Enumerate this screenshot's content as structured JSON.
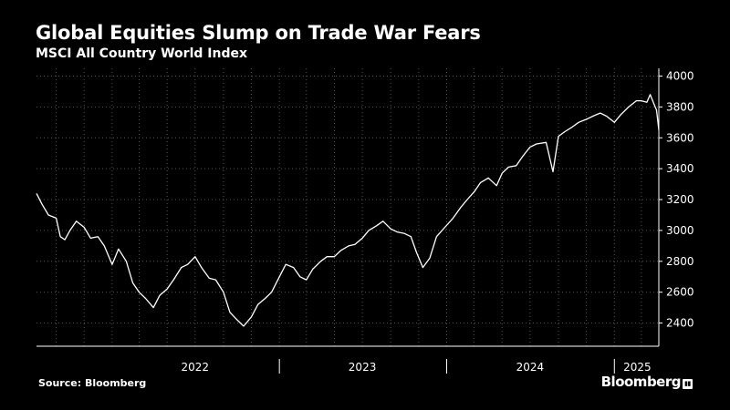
{
  "chart_data": {
    "type": "line",
    "title": "Global Equities Slump on Trade War Fears",
    "subtitle": "MSCI All Country World Index",
    "xlabel": "",
    "ylabel": "",
    "ylim": [
      2250,
      4050
    ],
    "yticks": [
      2400,
      2600,
      2800,
      3000,
      3200,
      3400,
      3600,
      3800,
      4000
    ],
    "xlim": [
      "2021-07-20",
      "2025-04-08"
    ],
    "year_labels": [
      {
        "label": "2022",
        "center": "2022-07-01"
      },
      {
        "label": "2023",
        "center": "2023-07-01"
      },
      {
        "label": "2024",
        "center": "2024-07-01"
      },
      {
        "label": "2025",
        "center": "2025-02-20"
      }
    ],
    "year_boundaries": [
      "2023-01-01",
      "2024-01-01",
      "2025-01-01"
    ],
    "grid": true,
    "series": [
      {
        "color": "#ffffff",
        "x": [
          "2021-07-20",
          "2021-08-01",
          "2021-08-15",
          "2021-09-01",
          "2021-09-10",
          "2021-09-20",
          "2021-10-01",
          "2021-10-15",
          "2021-11-01",
          "2021-11-15",
          "2021-12-01",
          "2021-12-15",
          "2022-01-01",
          "2022-01-15",
          "2022-02-01",
          "2022-02-15",
          "2022-03-01",
          "2022-03-15",
          "2022-04-01",
          "2022-04-15",
          "2022-05-01",
          "2022-05-15",
          "2022-06-01",
          "2022-06-15",
          "2022-07-01",
          "2022-07-15",
          "2022-08-01",
          "2022-08-15",
          "2022-09-01",
          "2022-09-15",
          "2022-10-01",
          "2022-10-15",
          "2022-11-01",
          "2022-11-15",
          "2022-12-01",
          "2022-12-15",
          "2023-01-01",
          "2023-01-15",
          "2023-02-01",
          "2023-02-15",
          "2023-03-01",
          "2023-03-15",
          "2023-04-01",
          "2023-04-15",
          "2023-05-01",
          "2023-05-15",
          "2023-06-01",
          "2023-06-15",
          "2023-07-01",
          "2023-07-15",
          "2023-08-01",
          "2023-08-15",
          "2023-09-01",
          "2023-09-15",
          "2023-10-01",
          "2023-10-15",
          "2023-10-27",
          "2023-11-10",
          "2023-11-25",
          "2023-12-10",
          "2023-12-28",
          "2024-01-15",
          "2024-02-01",
          "2024-02-15",
          "2024-03-01",
          "2024-03-15",
          "2024-04-01",
          "2024-04-19",
          "2024-05-01",
          "2024-05-15",
          "2024-06-01",
          "2024-06-15",
          "2024-07-01",
          "2024-07-15",
          "2024-08-05",
          "2024-08-20",
          "2024-09-01",
          "2024-09-15",
          "2024-10-01",
          "2024-10-15",
          "2024-11-01",
          "2024-11-15",
          "2024-12-01",
          "2024-12-15",
          "2025-01-01",
          "2025-01-15",
          "2025-02-01",
          "2025-02-18",
          "2025-03-01",
          "2025-03-13",
          "2025-03-20",
          "2025-03-31",
          "2025-04-03",
          "2025-04-08"
        ],
        "y": [
          3240,
          3170,
          3100,
          3080,
          2960,
          2940,
          3000,
          3060,
          3020,
          2950,
          2960,
          2900,
          2780,
          2880,
          2800,
          2660,
          2600,
          2560,
          2500,
          2580,
          2620,
          2680,
          2760,
          2780,
          2830,
          2760,
          2690,
          2680,
          2600,
          2470,
          2420,
          2380,
          2440,
          2520,
          2560,
          2600,
          2700,
          2780,
          2760,
          2700,
          2680,
          2750,
          2800,
          2830,
          2830,
          2870,
          2900,
          2910,
          2950,
          3000,
          3030,
          3060,
          3010,
          2990,
          2980,
          2960,
          2860,
          2760,
          2820,
          2960,
          3020,
          3080,
          3150,
          3200,
          3250,
          3310,
          3340,
          3290,
          3370,
          3410,
          3420,
          3480,
          3540,
          3560,
          3570,
          3380,
          3610,
          3640,
          3670,
          3700,
          3720,
          3740,
          3760,
          3740,
          3700,
          3750,
          3800,
          3840,
          3840,
          3830,
          3880,
          3800,
          3780,
          3650
        ]
      }
    ]
  },
  "footer": {
    "source": "Source: Bloomberg",
    "brand": "Bloomberg",
    "brand_icon": "chart-icon"
  }
}
